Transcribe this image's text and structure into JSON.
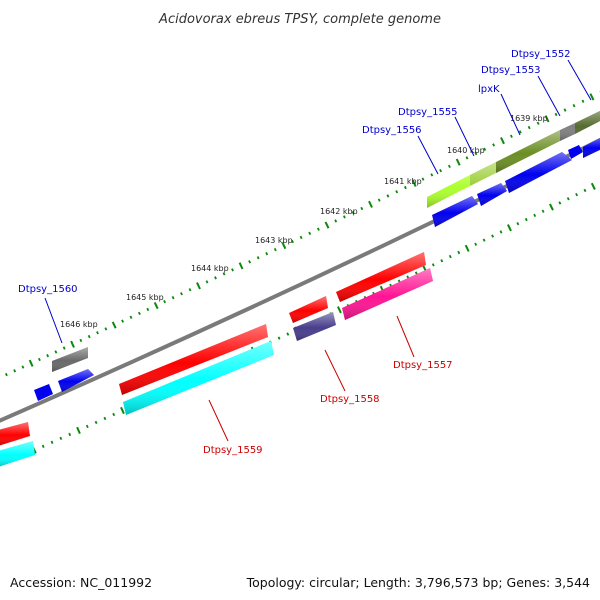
{
  "title": "Acidovorax ebreus TPSY, complete genome",
  "footer": {
    "accession": "Accession: NC_011992",
    "summary": "Topology: circular; Length: 3,796,573 bp; Genes: 3,544"
  },
  "colors": {
    "backbone": "#7a7a7a",
    "tick": "#0a8a0a",
    "forward_label": "#0000cc",
    "reverse_label": "#cc0000"
  },
  "kbp_labels": [
    "1639 kbp",
    "1640 kbp",
    "1641 kbp",
    "1642 kbp",
    "1643 kbp",
    "1644 kbp",
    "1645 kbp",
    "1646 kbp"
  ],
  "forward_genes": [
    {
      "name": "Dtpsy_1552",
      "color": "#0000ee",
      "track_color": "#556b2f"
    },
    {
      "name": "Dtpsy_1553",
      "color": "#0000ee",
      "track_color": "#808080"
    },
    {
      "name": "lpxK",
      "color": "#0000ee",
      "track_color": "#6b8e23"
    },
    {
      "name": "Dtpsy_1555",
      "color": "#0000ee",
      "track_color": "#9acd32"
    },
    {
      "name": "Dtpsy_1556",
      "color": "#0000ee",
      "track_color": "#adff2f"
    },
    {
      "name": "Dtpsy_1560",
      "color": "#0000ee",
      "track_color": "#696969"
    }
  ],
  "reverse_genes": [
    {
      "name": "Dtpsy_1557",
      "color": "#ff0000",
      "track_color": "#ff1493"
    },
    {
      "name": "Dtpsy_1558",
      "color": "#ff0000",
      "track_color": "#483d8b"
    },
    {
      "name": "Dtpsy_1559",
      "color": "#ff0000",
      "track_color": "#00ffff"
    }
  ]
}
